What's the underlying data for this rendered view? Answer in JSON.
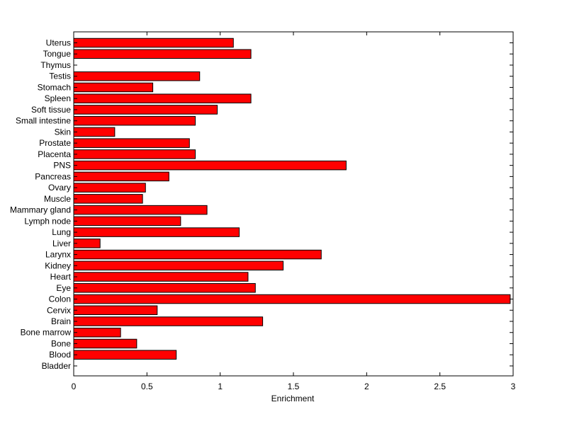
{
  "chart_data": {
    "type": "bar",
    "orientation": "horizontal",
    "title": "",
    "xlabel": "Enrichment",
    "ylabel": "",
    "xlim": [
      0,
      3
    ],
    "xticks": [
      "0",
      "0.5",
      "1",
      "1.5",
      "2",
      "2.5",
      "3"
    ],
    "grid": false,
    "bar_color": "#ff0000",
    "categories": [
      "Uterus",
      "Tongue",
      "Thymus",
      "Testis",
      "Stomach",
      "Spleen",
      "Soft tissue",
      "Small intestine",
      "Skin",
      "Prostate",
      "Placenta",
      "PNS",
      "Pancreas",
      "Ovary",
      "Muscle",
      "Mammary gland",
      "Lymph node",
      "Lung",
      "Liver",
      "Larynx",
      "Kidney",
      "Heart",
      "Eye",
      "Colon",
      "Cervix",
      "Brain",
      "Bone marrow",
      "Bone",
      "Blood",
      "Bladder"
    ],
    "values": [
      1.09,
      1.21,
      0,
      0.86,
      0.54,
      1.21,
      0.98,
      0.83,
      0.28,
      0.79,
      0.83,
      1.86,
      0.65,
      0.49,
      0.47,
      0.91,
      0.73,
      1.13,
      0.18,
      1.69,
      1.43,
      1.19,
      1.24,
      2.98,
      0.57,
      1.29,
      0.32,
      0.43,
      0.7,
      0
    ]
  }
}
